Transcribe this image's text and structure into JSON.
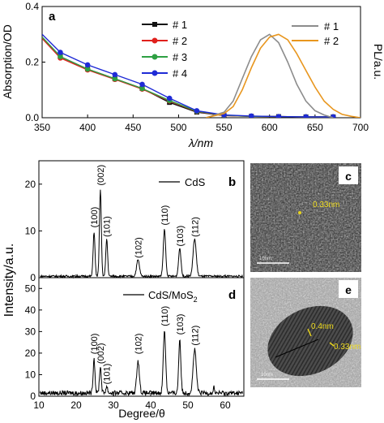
{
  "chart_data": [
    {
      "panel_label": "a",
      "type": "line",
      "xlabel": "λ/nm",
      "ylabel_left": "Absorption/OD",
      "ylabel_right": "PL/a.u.",
      "xlim": [
        350,
        700
      ],
      "ylim": [
        0,
        0.4
      ],
      "x_ticks": [
        350,
        400,
        450,
        500,
        550,
        600,
        650,
        700
      ],
      "y_ticks": [
        0.0,
        0.2,
        0.4
      ],
      "legend_absorption": [
        "# 1",
        "# 2",
        "# 3",
        "# 4"
      ],
      "legend_pl": [
        "# 1",
        "# 2"
      ],
      "colors": {
        "s1": "#111111",
        "s2": "#e0201c",
        "s3": "#2ea043",
        "s4": "#1f2bd6",
        "pl1": "#8c8c8c",
        "pl2": "#e8961e"
      },
      "absorption_series": [
        {
          "name": "# 1",
          "x": [
            350,
            370,
            400,
            430,
            460,
            490,
            520,
            550,
            580,
            610,
            640,
            670
          ],
          "y": [
            0.29,
            0.22,
            0.175,
            0.14,
            0.105,
            0.055,
            0.02,
            0.008,
            0.005,
            0.004,
            0.003,
            0.003
          ]
        },
        {
          "name": "# 2",
          "x": [
            350,
            370,
            400,
            430,
            460,
            490,
            520,
            550,
            580,
            610,
            640,
            670
          ],
          "y": [
            0.285,
            0.215,
            0.172,
            0.138,
            0.103,
            0.06,
            0.022,
            0.008,
            0.005,
            0.004,
            0.003,
            0.003
          ]
        },
        {
          "name": "# 3",
          "x": [
            350,
            370,
            400,
            430,
            460,
            490,
            520,
            550,
            580,
            610,
            640,
            670
          ],
          "y": [
            0.29,
            0.22,
            0.175,
            0.14,
            0.105,
            0.062,
            0.023,
            0.009,
            0.005,
            0.004,
            0.003,
            0.003
          ]
        },
        {
          "name": "# 4",
          "x": [
            350,
            370,
            400,
            430,
            460,
            490,
            520,
            550,
            580,
            610,
            640,
            670
          ],
          "y": [
            0.3,
            0.235,
            0.19,
            0.155,
            0.12,
            0.07,
            0.025,
            0.01,
            0.006,
            0.004,
            0.003,
            0.003
          ]
        }
      ],
      "pl_series": [
        {
          "name": "# 1",
          "x": [
            530,
            550,
            560,
            570,
            580,
            590,
            600,
            610,
            620,
            630,
            640,
            650,
            660,
            670
          ],
          "y": [
            0.0,
            0.02,
            0.06,
            0.14,
            0.22,
            0.28,
            0.3,
            0.27,
            0.2,
            0.12,
            0.06,
            0.025,
            0.01,
            0.0
          ]
        },
        {
          "name": "# 2",
          "x": [
            530,
            550,
            560,
            570,
            580,
            590,
            600,
            610,
            620,
            630,
            640,
            650,
            660,
            670,
            680,
            690,
            700
          ],
          "y": [
            0.0,
            0.015,
            0.04,
            0.1,
            0.18,
            0.25,
            0.29,
            0.3,
            0.28,
            0.23,
            0.17,
            0.11,
            0.06,
            0.03,
            0.012,
            0.005,
            0.0
          ]
        }
      ]
    },
    {
      "panel_label": "b",
      "type": "line",
      "legend": "CdS",
      "xlim": [
        10,
        65
      ],
      "ylim": [
        0,
        25
      ],
      "y_ticks": [
        0,
        10,
        20
      ],
      "peak_labels": [
        {
          "x": 24.8,
          "y": 10,
          "label": "(100)"
        },
        {
          "x": 26.5,
          "y": 19,
          "label": "(002)"
        },
        {
          "x": 28.2,
          "y": 8,
          "label": "(101)"
        },
        {
          "x": 36.6,
          "y": 3.5,
          "label": "(102)"
        },
        {
          "x": 43.7,
          "y": 10.5,
          "label": "(110)"
        },
        {
          "x": 47.8,
          "y": 6,
          "label": "(103)"
        },
        {
          "x": 51.8,
          "y": 8,
          "label": "(112)"
        }
      ],
      "peaks": [
        [
          24.8,
          9.5,
          0.35
        ],
        [
          26.5,
          18.5,
          0.35
        ],
        [
          28.2,
          8,
          0.35
        ],
        [
          36.6,
          3.5,
          0.55
        ],
        [
          43.7,
          10,
          0.45
        ],
        [
          47.8,
          6,
          0.45
        ],
        [
          51.8,
          8,
          0.6
        ]
      ],
      "baseline": 0.3
    },
    {
      "panel_label": "d",
      "type": "line",
      "legend": "CdS/MoS",
      "legend_subscript": "2",
      "xlabel": "Degree/θ",
      "xlim": [
        10,
        65
      ],
      "ylim": [
        0,
        55
      ],
      "x_ticks": [
        10,
        20,
        30,
        40,
        50,
        60
      ],
      "y_ticks": [
        0,
        10,
        20,
        30,
        40,
        50
      ],
      "peak_labels": [
        {
          "x": 24.8,
          "y": 18,
          "label": "(100)"
        },
        {
          "x": 26.5,
          "y": 13.5,
          "label": "(002)"
        },
        {
          "x": 28.2,
          "y": 4,
          "label": "(101)"
        },
        {
          "x": 36.6,
          "y": 18,
          "label": "(102)"
        },
        {
          "x": 43.7,
          "y": 31,
          "label": "(110)"
        },
        {
          "x": 47.8,
          "y": 27,
          "label": "(103)"
        },
        {
          "x": 51.8,
          "y": 22,
          "label": "(112)"
        }
      ],
      "peaks": [
        [
          24.8,
          16,
          0.35
        ],
        [
          26.5,
          12,
          0.35
        ],
        [
          28.2,
          3,
          0.35
        ],
        [
          36.6,
          15,
          0.5
        ],
        [
          43.7,
          29,
          0.45
        ],
        [
          47.8,
          25,
          0.4
        ],
        [
          51.8,
          20,
          0.6
        ],
        [
          57,
          3,
          0.2
        ]
      ],
      "baseline": 1.5
    }
  ],
  "shared_ylabel": "Intensity/a.u.",
  "tem_c": {
    "label": "c",
    "annotation": "0.33nm",
    "scale": "10nm"
  },
  "tem_e": {
    "label": "e",
    "annotation1": "0.4nm",
    "annotation2": "0.33nm",
    "scale": "10nm"
  }
}
